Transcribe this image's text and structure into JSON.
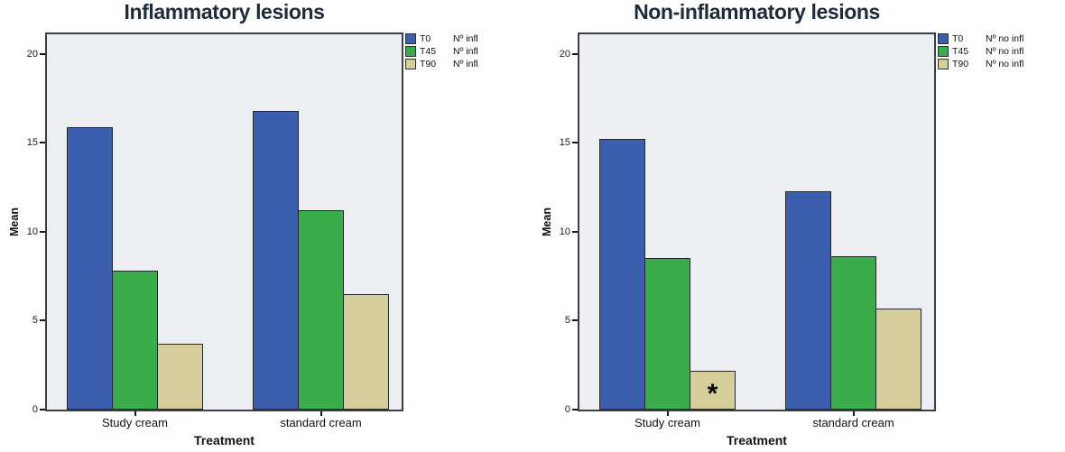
{
  "figure": {
    "background": "#ffffff"
  },
  "colors": {
    "title_text": "#1e2b3c",
    "axis_text": "#1a1a1a",
    "plot_background": "#eceef2",
    "plot_border": "#3a3f46",
    "bar_border": "#23282e",
    "series_blue": "#3c5eae",
    "series_green": "#3aad4a",
    "series_tan": "#d5ce9b"
  },
  "chart_data": [
    {
      "type": "bar",
      "title": "Inflammatory lesions",
      "xlabel": "Treatment",
      "ylabel": "Mean",
      "categories": [
        "Study cream",
        "standard cream"
      ],
      "series": [
        {
          "name": "T0",
          "scale_label": "Nº infl",
          "color": "#3c5eae",
          "values": [
            15.9,
            16.8
          ]
        },
        {
          "name": "T45",
          "scale_label": "Nº infl",
          "color": "#3aad4a",
          "values": [
            7.8,
            11.2
          ]
        },
        {
          "name": "T90",
          "scale_label": "Nº infl",
          "color": "#d5ce9b",
          "values": [
            3.7,
            6.5
          ]
        }
      ],
      "yticks": [
        0,
        5,
        10,
        15,
        20
      ],
      "ylim": [
        0,
        21.1
      ],
      "grid": false,
      "legend_position": "top-right-outside",
      "annotations": []
    },
    {
      "type": "bar",
      "title": "Non-inflammatory lesions",
      "xlabel": "Treatment",
      "ylabel": "Mean",
      "categories": [
        "Study cream",
        "standard cream"
      ],
      "series": [
        {
          "name": "T0",
          "scale_label": "Nº no infl",
          "color": "#3c5eae",
          "values": [
            15.2,
            12.3
          ]
        },
        {
          "name": "T45",
          "scale_label": "Nº no infl",
          "color": "#3aad4a",
          "values": [
            8.5,
            8.6
          ]
        },
        {
          "name": "T90",
          "scale_label": "Nº no infl",
          "color": "#d5ce9b",
          "values": [
            2.2,
            5.7
          ]
        }
      ],
      "yticks": [
        0,
        5,
        10,
        15,
        20
      ],
      "ylim": [
        0,
        21.1
      ],
      "grid": false,
      "legend_position": "top-right-outside",
      "annotations": [
        {
          "text": "*",
          "category_index": 0,
          "series_index": 2,
          "position": "inside-bottom"
        }
      ]
    }
  ]
}
